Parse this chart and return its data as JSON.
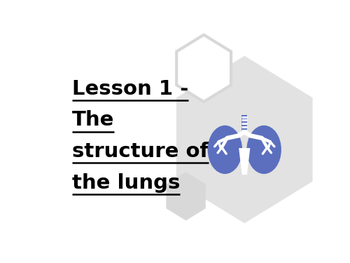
{
  "background_color": "#ffffff",
  "text_lines": [
    "Lesson 1 -",
    "The",
    "structure of",
    "the lungs"
  ],
  "text_color": "#000000",
  "text_fontsize": 21,
  "hex_large_color": "#e2e2e2",
  "hex_outline_color": "#e0e0e0",
  "hex_small_color": "#d8d8d8",
  "lung_color": "#5b6fbe",
  "lung_white": "#ffffff"
}
